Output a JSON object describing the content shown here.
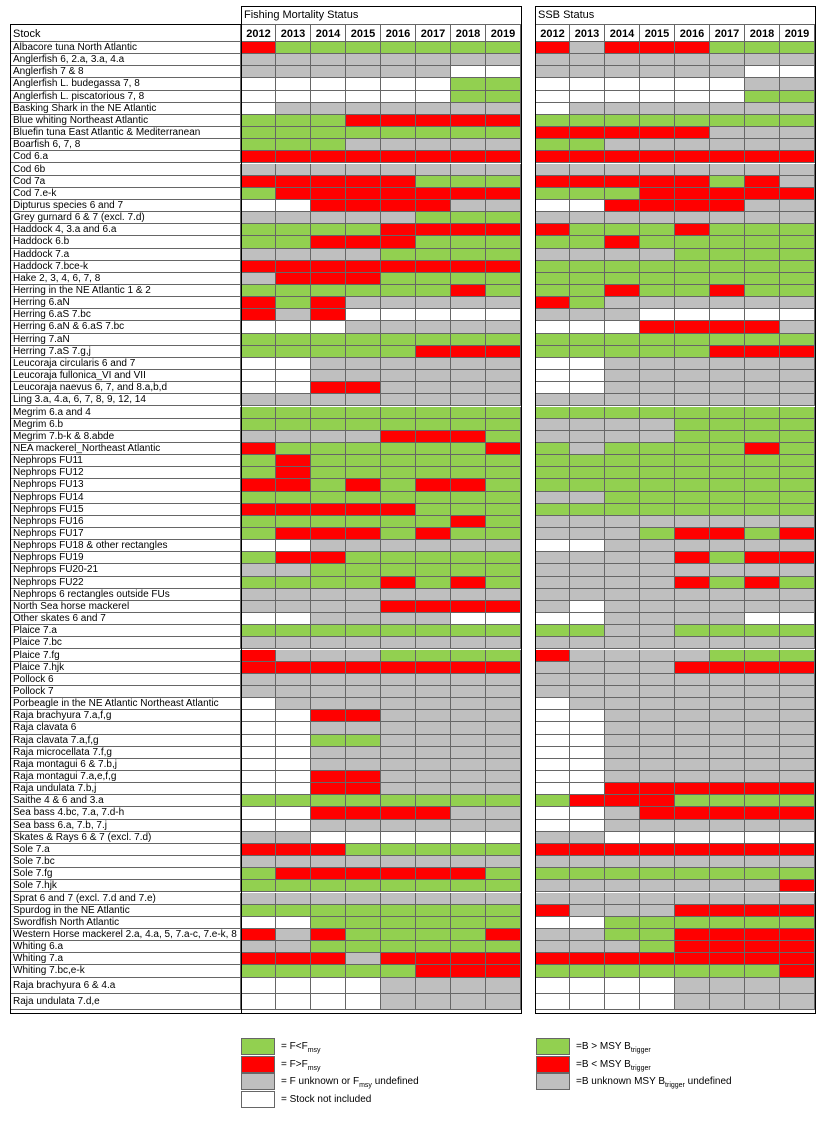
{
  "colors": {
    "G": "#92D050",
    "R": "#FF0000",
    "U": "#BFBFBF",
    "W": "#FFFFFF"
  },
  "headers": {
    "stock": "Stock",
    "fishing": "Fishing Mortality Status",
    "ssb": "SSB Status"
  },
  "chart_data": {
    "type": "heatmap",
    "title": "",
    "years": [
      "2012",
      "2013",
      "2014",
      "2015",
      "2016",
      "2017",
      "2018",
      "2019"
    ],
    "status_codes": {
      "G": "green",
      "R": "red",
      "U": "grey",
      "W": "white"
    },
    "rows": [
      {
        "stock": "Albacore tuna North Atlantic",
        "f": "RGGGGGGG",
        "ssb": "RURRRGGG"
      },
      {
        "stock": "Anglerfish 6, 2.a, 3.a, 4.a",
        "f": "UUUUUUUU",
        "ssb": "UUUUUUUU"
      },
      {
        "stock": "Anglerfish 7 & 8",
        "f": "UUUUUUWW",
        "ssb": "UUUUUUWW"
      },
      {
        "stock": "Anglerfish L. budegassa 7, 8",
        "f": "WWWWWWGG",
        "ssb": "WWWWWWUU"
      },
      {
        "stock": "Anglerfish L. piscatorious 7, 8",
        "f": "WWWWWWGG",
        "ssb": "WWWWWWGG"
      },
      {
        "stock": "Basking Shark in the NE Atlantic",
        "f": "WUUUUUUU",
        "ssb": "WUUUUUUU"
      },
      {
        "stock": "Blue whiting Northeast Atlantic",
        "f": "GGGRRRRR",
        "ssb": "GGGGGGGG"
      },
      {
        "stock": "Bluefin tuna East Atlantic & Mediterranean",
        "f": "GGGGGGGG",
        "ssb": "RRRRRUUU"
      },
      {
        "stock": "Boarfish 6, 7, 8",
        "f": "GGGUUUUU",
        "ssb": "GGUUUUUU"
      },
      {
        "stock": "Cod 6.a",
        "f": "RRRRRRRR",
        "ssb": "RRRRRRRR"
      },
      {
        "stock": "Cod 6b",
        "f": "UUUUUUUU",
        "ssb": "UUUUUUUU"
      },
      {
        "stock": "Cod 7a",
        "f": "RRRRRGGG",
        "ssb": "RRRRRGRU"
      },
      {
        "stock": "Cod 7.e-k",
        "f": "GRRRRRRR",
        "ssb": "GGGRRRRR"
      },
      {
        "stock": "Dipturus species 6 and 7",
        "f": "WWRRRRUU",
        "ssb": "WWRRRRUU"
      },
      {
        "stock": "Grey gurnard 6 & 7 (excl. 7.d)",
        "f": "UUUUUGGG",
        "ssb": "UUUUUUUU"
      },
      {
        "stock": "Haddock 4, 3.a and 6.a",
        "f": "GGGGRRRR",
        "ssb": "RGGGRGGG"
      },
      {
        "stock": "Haddock 6.b",
        "f": "GGRRRGGG",
        "ssb": "GGRGGGGG"
      },
      {
        "stock": "Haddock 7.a",
        "f": "UUUUGGGG",
        "ssb": "UUUUGGGG"
      },
      {
        "stock": "Haddock 7.bce-k",
        "f": "RRRRRRRR",
        "ssb": "GGGGGGGG"
      },
      {
        "stock": "Hake 2, 3, 4, 6, 7, 8",
        "f": "URRRGGGG",
        "ssb": "GGGGGGGG"
      },
      {
        "stock": "Herring in the NE Atlantic  1 & 2",
        "f": "GGGGGGRG",
        "ssb": "GGRGGRGG"
      },
      {
        "stock": "Herring 6.aN",
        "f": "RGRUUUUU",
        "ssb": "RGUUUUUU"
      },
      {
        "stock": "Herring 6.aS 7.bc",
        "f": "RURWWWWW",
        "ssb": "UUUWWWWW"
      },
      {
        "stock": "Herring 6.aN & 6.aS 7.bc",
        "f": "WWWUUUUU",
        "ssb": "WWWRRRRU"
      },
      {
        "stock": "Herring 7.aN",
        "f": "GGGGGGGG",
        "ssb": "GGGGGGGG"
      },
      {
        "stock": "Herring 7.aS 7.g,j",
        "f": "GGGGGRRR",
        "ssb": "GGGGGRRR"
      },
      {
        "stock": "Leucoraja circularis 6 and 7",
        "f": "WWUUUUUU",
        "ssb": "WWUUUUUU"
      },
      {
        "stock": "Leucoraja fullonica_VI and VII",
        "f": "WWUUUUUU",
        "ssb": "WWUUUUUU"
      },
      {
        "stock": "Leucoraja naevus 6, 7, and 8.a,b,d",
        "f": "WWRRUUUU",
        "ssb": "WWUUUUUU"
      },
      {
        "stock": "Ling 3.a, 4.a, 6, 7, 8, 9, 12, 14",
        "f": "UUUUUUUU",
        "ssb": "UUUUUUUU"
      },
      {
        "stock": "Megrim 6.a and 4",
        "f": "GGGGGGGG",
        "ssb": "GGGGGGGG"
      },
      {
        "stock": "Megrim 6.b",
        "f": "GGGGGGGG",
        "ssb": "UUUUGGGG"
      },
      {
        "stock": "Megrim 7.b-k & 8.abde",
        "f": "UUUURRRG",
        "ssb": "UUUUGGGG"
      },
      {
        "stock": "NEA mackerel_Northeast Atlantic",
        "f": "RGGGGGGR",
        "ssb": "GUGGGGRG"
      },
      {
        "stock": "Nephrops FU11",
        "f": "GRGGGGGG",
        "ssb": "GGGGGGGG"
      },
      {
        "stock": "Nephrops FU12",
        "f": "GRGGGGGG",
        "ssb": "GGGGGGGG"
      },
      {
        "stock": "Nephrops FU13",
        "f": "RRGRGRRG",
        "ssb": "GGGGGGGG"
      },
      {
        "stock": "Nephrops FU14",
        "f": "GGGGGGGG",
        "ssb": "UUGGGGGG"
      },
      {
        "stock": "Nephrops FU15",
        "f": "RRRRRGGG",
        "ssb": "GGGGGGGG"
      },
      {
        "stock": "Nephrops FU16",
        "f": "GGGGGGRG",
        "ssb": "UUUUUUUU"
      },
      {
        "stock": "Nephrops FU17",
        "f": "GRRRGRGG",
        "ssb": "UUUGRRGR"
      },
      {
        "stock": "Nephrops FU18 & other rectangles",
        "f": "WWUUUUUU",
        "ssb": "WWUUUUUU"
      },
      {
        "stock": "Nephrops FU19",
        "f": "GRRGGGGG",
        "ssb": "UUUURGRR"
      },
      {
        "stock": "Nephrops FU20-21",
        "f": "UUGGGGGG",
        "ssb": "UUUUUUUU"
      },
      {
        "stock": "Nephrops FU22",
        "f": "GGGGRGRG",
        "ssb": "UUUURGRG"
      },
      {
        "stock": "Nephrops 6 rectangles outside FUs",
        "f": "UUUUUUUU",
        "ssb": "UUUUUUUU"
      },
      {
        "stock": "North Sea horse mackerel",
        "f": "UUUURRRR",
        "ssb": "UWUUUUUU"
      },
      {
        "stock": "Other skates 6 and 7",
        "f": "WWUUUUWW",
        "ssb": "WWUUUUWW"
      },
      {
        "stock": "Plaice 7.a",
        "f": "GGGGGGGG",
        "ssb": "GGUUGGGG"
      },
      {
        "stock": "Plaice 7.bc",
        "f": "UUUUUUUU",
        "ssb": "UUUUUUUU"
      },
      {
        "stock": "Plaice 7.fg",
        "f": "RUUUGGGG",
        "ssb": "RUUUUGGG"
      },
      {
        "stock": "Plaice 7.hjk",
        "f": "RRRRRRRR",
        "ssb": "UUUURRRR"
      },
      {
        "stock": "Pollock 6",
        "f": "UUUUUUUU",
        "ssb": "UUUUUUUU"
      },
      {
        "stock": "Pollock 7",
        "f": "UUUUUUUU",
        "ssb": "UUUUUUUU"
      },
      {
        "stock": "Porbeagle in the NE Atlantic Northeast Atlantic",
        "f": "WUUUUUUU",
        "ssb": "WUUUUUUU"
      },
      {
        "stock": "Raja brachyura 7.a,f,g",
        "f": "WWRRUUUU",
        "ssb": "WWUUUUUU"
      },
      {
        "stock": "Raja clavata 6",
        "f": "WWUUUUUU",
        "ssb": "WWUUUUUU"
      },
      {
        "stock": "Raja clavata 7.a,f,g",
        "f": "WWGGUUUU",
        "ssb": "WWUUUUUU"
      },
      {
        "stock": "Raja microcellata 7.f,g",
        "f": "WWUUUUUU",
        "ssb": "WWUUUUUU"
      },
      {
        "stock": "Raja montagui 6 & 7.b,j",
        "f": "WWUUUUUU",
        "ssb": "WWUUUUUU"
      },
      {
        "stock": "Raja montagui 7.a,e,f,g",
        "f": "WWRRUUUU",
        "ssb": "WWUUUUUU"
      },
      {
        "stock": "Raja undulata 7.b,j",
        "f": "WWRRUUUU",
        "ssb": "WWRRRRRR"
      },
      {
        "stock": "Saithe 4 & 6 and 3.a",
        "f": "GGGGGGGG",
        "ssb": "GRRRGGGG"
      },
      {
        "stock": "Sea bass 4.bc, 7.a, 7.d-h",
        "f": "WWRRRRUU",
        "ssb": "WWURRRRR"
      },
      {
        "stock": "Sea bass 6.a, 7.b, 7.j",
        "f": "WWUUUUUU",
        "ssb": "WWUUUUUU"
      },
      {
        "stock": "Skates & Rays 6 & 7 (excl. 7.d)",
        "f": "UUWWWWWW",
        "ssb": "UUWWWWWW"
      },
      {
        "stock": "Sole 7.a",
        "f": "RRRGGGGG",
        "ssb": "RRRRRRRR"
      },
      {
        "stock": "Sole 7.bc",
        "f": "UUUUUUUU",
        "ssb": "UUUUUUUU"
      },
      {
        "stock": "Sole 7.fg",
        "f": "GRRRRRRG",
        "ssb": "GGGGGGGG"
      },
      {
        "stock": "Sole 7.hjk",
        "f": "GGGGGGGG",
        "ssb": "UUUUUUUR"
      },
      {
        "stock": "Sprat 6 and 7 (excl. 7.d and 7.e)",
        "f": "UUUUUUUU",
        "ssb": "UUUUUUUU"
      },
      {
        "stock": "Spurdog in the NE Atlantic",
        "f": "GGGGGGGG",
        "ssb": "RUUURRRR"
      },
      {
        "stock": "Swordfish North Atlantic",
        "f": "WWGGGGGG",
        "ssb": "WWGGGGGG"
      },
      {
        "stock": "Western Horse mackerel 2.a, 4.a, 5, 7.a-c, 7.e-k, 8",
        "f": "RURGGGGR",
        "ssb": "UUGGRRRR"
      },
      {
        "stock": "Whiting 6.a",
        "f": "UUGGGGGG",
        "ssb": "UUUGRRRR"
      },
      {
        "stock": "Whiting 7.a",
        "f": "RRRURRRR",
        "ssb": "RRRRRRRR"
      },
      {
        "stock": "Whiting 7.bc,e-k",
        "f": "GGGGGRRR",
        "ssb": "GGGGGGGR"
      },
      {
        "stock": "Raja brachyura 6 & 4.a",
        "f": "WWWWUUUU",
        "ssb": "WWWWUUUU"
      },
      {
        "stock": "Raja undulata 7.d,e",
        "f": "WWWWUUUU",
        "ssb": "WWWWUUUU"
      }
    ]
  },
  "legend_f": [
    {
      "code": "G",
      "text": "= F<F",
      "sub": "msy"
    },
    {
      "code": "R",
      "text": "= F>F",
      "sub": "msy"
    },
    {
      "code": "U",
      "text": "= F unknown or F",
      "sub": "msy",
      "tail": " undefined"
    },
    {
      "code": "W",
      "text": "= Stock not included",
      "sub": ""
    }
  ],
  "legend_ssb": [
    {
      "code": "G",
      "text": "=B > MSY B",
      "sub": "trigger"
    },
    {
      "code": "R",
      "text": "=B < MSY B",
      "sub": "trigger"
    },
    {
      "code": "U",
      "text": "=B unknown MSY B",
      "sub": "trigger",
      "tail": " undefined"
    }
  ]
}
